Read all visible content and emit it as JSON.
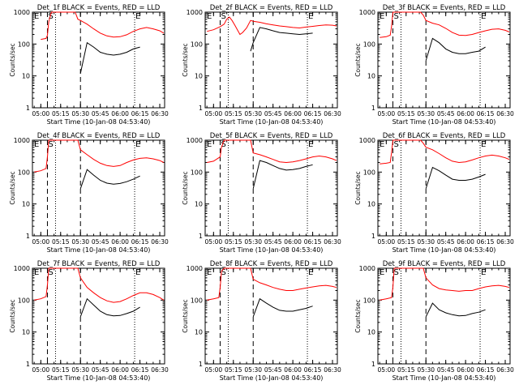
{
  "figure": {
    "common": {
      "ylabel": "Counts/sec",
      "xlabel": "Start Time (10-Jan-08 04:53:40)",
      "x_ticks": [
        "05:00",
        "05:15",
        "05:30",
        "05:45",
        "06:00",
        "06:15",
        "06:30"
      ],
      "y_ticks": [
        "1",
        "10",
        "100",
        "1000"
      ],
      "y_scale": "log",
      "ylim": [
        1,
        1000
      ],
      "xlim": [
        "04:53:40",
        "06:33:40"
      ],
      "marker_S_time": "05:05",
      "marker_E_time": "06:11",
      "colors": {
        "events": "#000000",
        "lld": "#ff0000",
        "markers": "#000000"
      }
    }
  },
  "chart_data": [
    {
      "type": "line",
      "title": "Det_1f BLACK = Events, RED = LLD",
      "labels": {
        "left": "E",
        "s": "S",
        "e": "E"
      },
      "x": [
        "05:00",
        "05:04",
        "05:05",
        "05:06",
        "05:08",
        "05:10",
        "05:12",
        "05:14",
        "05:16",
        "05:18",
        "05:20",
        "05:22",
        "05:24",
        "05:26",
        "05:28",
        "05:30",
        "05:35",
        "05:40",
        "05:45",
        "05:50",
        "05:55",
        "06:00",
        "06:05",
        "06:10",
        "06:15",
        "06:20",
        "06:25",
        "06:30",
        "06:33"
      ],
      "series": [
        {
          "name": "LLD",
          "values": [
            140,
            150,
            190,
            500,
            1000,
            1000,
            1000,
            1000,
            1000,
            1000,
            1000,
            1000,
            1000,
            1000,
            600,
            550,
            420,
            300,
            220,
            180,
            165,
            170,
            195,
            250,
            300,
            330,
            300,
            260,
            220
          ]
        },
        {
          "name": "Events",
          "values": [
            null,
            null,
            null,
            null,
            null,
            null,
            null,
            null,
            null,
            null,
            null,
            null,
            null,
            null,
            null,
            12,
            110,
            80,
            55,
            48,
            45,
            48,
            55,
            70,
            80,
            null,
            null,
            null,
            null
          ]
        }
      ]
    },
    {
      "type": "line",
      "title": "Det_2f BLACK = Events, RED = LLD",
      "labels": {
        "left": "E",
        "s": "S",
        "e": "E"
      },
      "x": [
        "04:55",
        "05:00",
        "05:05",
        "05:08",
        "05:10",
        "05:12",
        "05:14",
        "05:16",
        "05:18",
        "05:20",
        "05:22",
        "05:25",
        "05:28",
        "05:30",
        "05:35",
        "05:40",
        "05:45",
        "05:50",
        "05:55",
        "06:00",
        "06:05",
        "06:10",
        "06:15",
        "06:20",
        "06:25",
        "06:30",
        "06:33"
      ],
      "series": [
        {
          "name": "LLD",
          "values": [
            250,
            280,
            350,
            420,
            600,
            700,
            550,
            400,
            280,
            200,
            230,
            320,
            550,
            520,
            480,
            430,
            400,
            370,
            350,
            330,
            320,
            340,
            360,
            380,
            400,
            390,
            370
          ]
        },
        {
          "name": "Events",
          "values": [
            null,
            null,
            null,
            null,
            null,
            null,
            null,
            null,
            null,
            null,
            null,
            null,
            60,
            110,
            330,
            300,
            260,
            230,
            220,
            210,
            200,
            210,
            220,
            null,
            null,
            null,
            null
          ]
        }
      ]
    },
    {
      "type": "line",
      "title": "Det_3f BLACK = Events, RED = LLD",
      "labels": {
        "left": "E",
        "s": "S",
        "e": "E"
      },
      "x": [
        "04:55",
        "05:00",
        "05:03",
        "05:04",
        "05:05",
        "05:06",
        "05:08",
        "05:10",
        "05:12",
        "05:14",
        "05:16",
        "05:18",
        "05:20",
        "05:22",
        "05:24",
        "05:26",
        "05:28",
        "05:30",
        "05:35",
        "05:40",
        "05:45",
        "05:50",
        "05:55",
        "06:00",
        "06:05",
        "06:10",
        "06:15",
        "06:20",
        "06:25",
        "06:30",
        "06:33"
      ],
      "series": [
        {
          "name": "LLD",
          "values": [
            160,
            170,
            190,
            350,
            1000,
            1000,
            1000,
            1000,
            1000,
            1000,
            1000,
            1000,
            1000,
            1000,
            1000,
            1000,
            800,
            550,
            450,
            400,
            310,
            230,
            190,
            185,
            200,
            230,
            260,
            290,
            300,
            270,
            240
          ]
        },
        {
          "name": "Events",
          "values": [
            null,
            null,
            null,
            null,
            null,
            null,
            null,
            null,
            null,
            null,
            null,
            null,
            null,
            null,
            null,
            null,
            null,
            30,
            150,
            110,
            70,
            55,
            50,
            50,
            55,
            60,
            80,
            null,
            null,
            null,
            null
          ]
        }
      ]
    },
    {
      "type": "line",
      "title": "Det_4f BLACK = Events, RED = LLD",
      "labels": {
        "left": "E",
        "s": "S",
        "e": "E"
      },
      "x": [
        "04:55",
        "05:00",
        "05:04",
        "05:05",
        "05:06",
        "05:08",
        "05:10",
        "05:12",
        "05:14",
        "05:16",
        "05:18",
        "05:20",
        "05:22",
        "05:24",
        "05:26",
        "05:28",
        "05:30",
        "05:35",
        "05:40",
        "05:45",
        "05:50",
        "05:55",
        "06:00",
        "06:05",
        "06:10",
        "06:15",
        "06:20",
        "06:25",
        "06:30",
        "06:33"
      ],
      "series": [
        {
          "name": "LLD",
          "values": [
            100,
            110,
            130,
            300,
            1000,
            1000,
            1000,
            1000,
            1000,
            1000,
            1000,
            1000,
            1000,
            1000,
            1000,
            1000,
            500,
            350,
            250,
            190,
            160,
            150,
            160,
            200,
            240,
            270,
            280,
            260,
            230,
            200
          ]
        },
        {
          "name": "Events",
          "values": [
            null,
            null,
            null,
            null,
            null,
            null,
            null,
            null,
            null,
            null,
            null,
            null,
            null,
            null,
            null,
            null,
            30,
            120,
            80,
            55,
            45,
            42,
            44,
            50,
            60,
            75,
            null,
            null,
            null,
            null
          ]
        }
      ]
    },
    {
      "type": "line",
      "title": "Det_5f BLACK = Events, RED = LLD",
      "labels": {
        "left": "E",
        "s": "S",
        "e": "E"
      },
      "x": [
        "04:55",
        "05:00",
        "05:05",
        "05:06",
        "05:08",
        "05:10",
        "05:12",
        "05:14",
        "05:16",
        "05:18",
        "05:20",
        "05:22",
        "05:24",
        "05:26",
        "05:28",
        "05:30",
        "05:35",
        "05:40",
        "05:45",
        "05:50",
        "05:55",
        "06:00",
        "06:05",
        "06:10",
        "06:15",
        "06:20",
        "06:25",
        "06:30",
        "06:33"
      ],
      "series": [
        {
          "name": "LLD",
          "values": [
            200,
            220,
            300,
            600,
            1000,
            1000,
            1000,
            1000,
            1000,
            1000,
            1000,
            1000,
            1000,
            1000,
            1000,
            400,
            350,
            300,
            250,
            210,
            200,
            210,
            230,
            260,
            300,
            320,
            300,
            260,
            230
          ]
        },
        {
          "name": "Events",
          "values": [
            null,
            null,
            null,
            null,
            null,
            null,
            null,
            null,
            null,
            null,
            null,
            null,
            null,
            null,
            null,
            30,
            230,
            200,
            160,
            130,
            115,
            120,
            130,
            150,
            170,
            null,
            null,
            null,
            null
          ]
        }
      ]
    },
    {
      "type": "line",
      "title": "Det_6f BLACK = Events, RED = LLD",
      "labels": {
        "left": "E",
        "s": "S",
        "e": "E"
      },
      "x": [
        "04:55",
        "05:00",
        "05:03",
        "05:04",
        "05:05",
        "05:06",
        "05:08",
        "05:10",
        "05:12",
        "05:14",
        "05:16",
        "05:18",
        "05:20",
        "05:22",
        "05:24",
        "05:26",
        "05:28",
        "05:30",
        "05:35",
        "05:40",
        "05:45",
        "05:50",
        "05:55",
        "06:00",
        "06:05",
        "06:10",
        "06:15",
        "06:20",
        "06:25",
        "06:30",
        "06:33"
      ],
      "series": [
        {
          "name": "LLD",
          "values": [
            180,
            190,
            200,
            400,
            1000,
            1000,
            1000,
            1000,
            1000,
            1000,
            1000,
            1000,
            1000,
            1000,
            1000,
            1000,
            800,
            600,
            500,
            380,
            280,
            220,
            200,
            210,
            240,
            280,
            320,
            340,
            320,
            280,
            250
          ]
        },
        {
          "name": "Events",
          "values": [
            null,
            null,
            null,
            null,
            null,
            null,
            null,
            null,
            null,
            null,
            null,
            null,
            null,
            null,
            null,
            null,
            null,
            30,
            140,
            110,
            80,
            60,
            55,
            55,
            60,
            70,
            85,
            null,
            null,
            null,
            null
          ]
        }
      ]
    },
    {
      "type": "line",
      "title": "Det_7f BLACK = Events, RED = LLD",
      "labels": {
        "left": "E",
        "s": "S",
        "e": "E"
      },
      "x": [
        "04:55",
        "05:00",
        "05:04",
        "05:05",
        "05:06",
        "05:08",
        "05:10",
        "05:12",
        "05:14",
        "05:16",
        "05:18",
        "05:20",
        "05:22",
        "05:24",
        "05:26",
        "05:28",
        "05:30",
        "05:35",
        "05:40",
        "05:45",
        "05:50",
        "05:55",
        "06:00",
        "06:05",
        "06:10",
        "06:15",
        "06:20",
        "06:25",
        "06:30",
        "06:33"
      ],
      "series": [
        {
          "name": "LLD",
          "values": [
            100,
            110,
            130,
            300,
            1000,
            1000,
            1000,
            1000,
            1000,
            1000,
            1000,
            1000,
            1000,
            1000,
            1000,
            1000,
            500,
            250,
            170,
            120,
            95,
            85,
            90,
            110,
            140,
            170,
            170,
            150,
            120,
            100
          ]
        },
        {
          "name": "Events",
          "values": [
            null,
            null,
            null,
            null,
            null,
            null,
            null,
            null,
            null,
            null,
            null,
            null,
            null,
            null,
            null,
            null,
            30,
            110,
            70,
            45,
            35,
            32,
            33,
            38,
            45,
            60,
            null,
            null,
            null,
            null
          ]
        }
      ]
    },
    {
      "type": "line",
      "title": "Det_8f BLACK = Events, RED = LLD",
      "labels": {
        "left": "E",
        "s": "S",
        "e": "E"
      },
      "x": [
        "04:55",
        "05:00",
        "05:04",
        "05:05",
        "05:06",
        "05:08",
        "05:10",
        "05:12",
        "05:14",
        "05:16",
        "05:18",
        "05:20",
        "05:22",
        "05:24",
        "05:26",
        "05:28",
        "05:30",
        "05:35",
        "05:40",
        "05:45",
        "05:50",
        "05:55",
        "06:00",
        "06:05",
        "06:10",
        "06:15",
        "06:20",
        "06:25",
        "06:30",
        "06:33"
      ],
      "series": [
        {
          "name": "LLD",
          "values": [
            100,
            110,
            120,
            250,
            800,
            1000,
            1000,
            1000,
            1000,
            1000,
            1000,
            1000,
            1000,
            1000,
            1000,
            1000,
            450,
            350,
            300,
            250,
            220,
            200,
            200,
            220,
            240,
            260,
            280,
            290,
            270,
            250
          ]
        },
        {
          "name": "Events",
          "values": [
            null,
            null,
            null,
            null,
            null,
            null,
            null,
            null,
            null,
            null,
            null,
            null,
            null,
            null,
            null,
            null,
            30,
            110,
            80,
            60,
            48,
            45,
            45,
            50,
            55,
            65,
            null,
            null,
            null,
            null
          ]
        }
      ]
    },
    {
      "type": "line",
      "title": "Det_9f BLACK = Events, RED = LLD",
      "labels": {
        "left": "E",
        "s": "S",
        "e": "E"
      },
      "x": [
        "04:55",
        "05:00",
        "05:04",
        "05:05",
        "05:06",
        "05:08",
        "05:10",
        "05:12",
        "05:14",
        "05:16",
        "05:18",
        "05:20",
        "05:22",
        "05:24",
        "05:26",
        "05:28",
        "05:30",
        "05:35",
        "05:40",
        "05:45",
        "05:50",
        "05:55",
        "06:00",
        "06:05",
        "06:10",
        "06:15",
        "06:20",
        "06:25",
        "06:30",
        "06:33"
      ],
      "series": [
        {
          "name": "LLD",
          "values": [
            100,
            110,
            120,
            250,
            1000,
            1000,
            1000,
            1000,
            1000,
            1000,
            1000,
            1000,
            1000,
            1000,
            1000,
            1000,
            500,
            300,
            230,
            210,
            200,
            190,
            200,
            200,
            230,
            260,
            280,
            290,
            270,
            250
          ]
        },
        {
          "name": "Events",
          "values": [
            null,
            null,
            null,
            null,
            null,
            null,
            null,
            null,
            null,
            null,
            null,
            null,
            null,
            null,
            null,
            null,
            30,
            80,
            50,
            40,
            35,
            32,
            33,
            38,
            42,
            50,
            null,
            null,
            null,
            null
          ]
        }
      ]
    }
  ]
}
